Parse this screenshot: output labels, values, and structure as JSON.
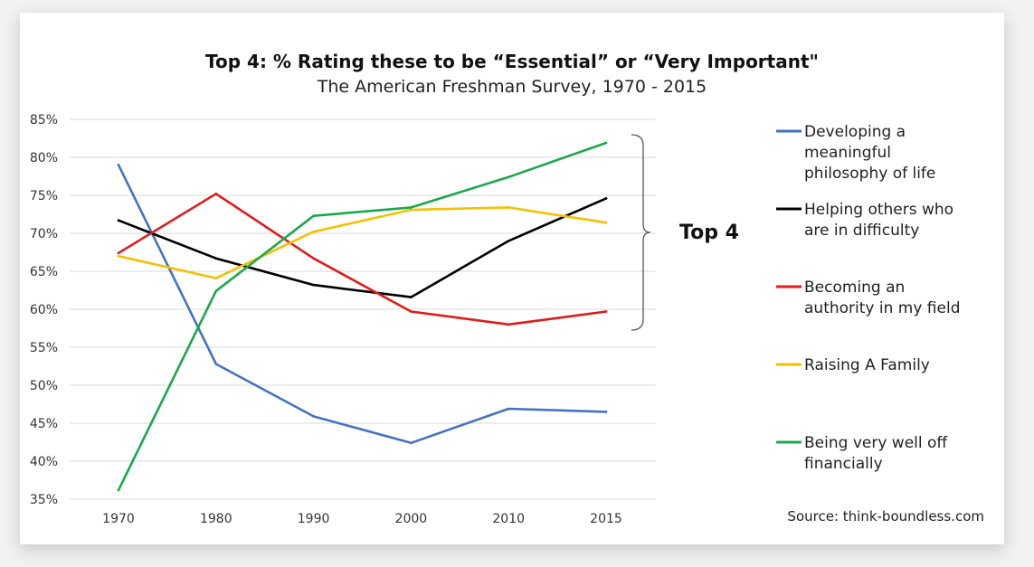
{
  "chart_data": {
    "type": "line",
    "title": "Top 4: % Rating these to be “Essential” or “Very Important\"",
    "subtitle": "The American Freshman Survey, 1970 - 2015",
    "x": [
      "1970",
      "1980",
      "1990",
      "2000",
      "2010",
      "2015"
    ],
    "y_ticks": [
      "85%",
      "80%",
      "75%",
      "70%",
      "65%",
      "60%",
      "55%",
      "50%",
      "45%",
      "40%",
      "35%"
    ],
    "ylim": [
      35,
      85
    ],
    "grid": true,
    "legend_position": "right",
    "series": [
      {
        "name": "Developing a meaningful philosophy of life",
        "legend_lines": [
          "Developing a",
          "meaningful",
          "philosophy of life"
        ],
        "color": "#4472c4",
        "values": [
          79.0,
          52.8,
          45.9,
          42.4,
          46.9,
          46.5
        ]
      },
      {
        "name": "Helping others who are in difficulty",
        "legend_lines": [
          "Helping others who",
          "are in difficulty"
        ],
        "color": "#000000",
        "values": [
          71.7,
          66.7,
          63.2,
          61.6,
          69.0,
          74.6
        ]
      },
      {
        "name": "Becoming an authority in my field",
        "legend_lines": [
          "Becoming an",
          "authority in my field"
        ],
        "color": "#e01b1b",
        "values": [
          67.4,
          75.2,
          66.7,
          59.7,
          58.0,
          59.7
        ]
      },
      {
        "name": "Raising A Family",
        "legend_lines": [
          "Raising A Family"
        ],
        "color": "#f5c000",
        "values": [
          67.0,
          64.1,
          70.2,
          73.1,
          73.4,
          71.4
        ]
      },
      {
        "name": "Being very well off financially",
        "legend_lines": [
          "Being very well off",
          "financially"
        ],
        "color": "#1aa84b",
        "values": [
          36.2,
          62.4,
          72.3,
          73.4,
          77.4,
          81.9
        ]
      }
    ],
    "annotation": "Top 4",
    "source": "Source: think-boundless.com"
  }
}
